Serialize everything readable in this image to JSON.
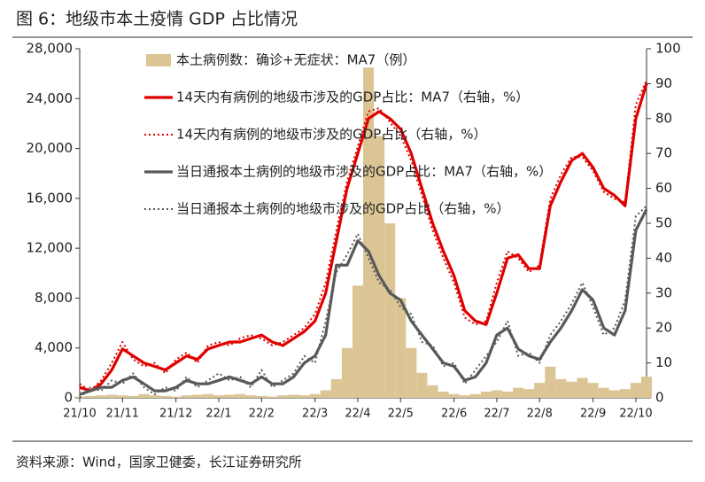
{
  "chart_data": {
    "type": "combo",
    "title": "图 6：地级市本土疫情 GDP 占比情况",
    "source": "资料来源：Wind，国家卫健委，长江证券研究所",
    "categories": [
      "21/10",
      null,
      null,
      null,
      "21/11",
      null,
      null,
      null,
      null,
      "21/12",
      null,
      null,
      null,
      "22/1",
      null,
      null,
      null,
      "22/2",
      null,
      null,
      null,
      null,
      "22/3",
      null,
      null,
      null,
      "22/4",
      null,
      null,
      null,
      "22/5",
      null,
      null,
      null,
      null,
      "22/6",
      null,
      null,
      null,
      "22/7",
      null,
      null,
      null,
      "22/8",
      null,
      null,
      null,
      null,
      "22/9",
      null,
      null,
      null,
      "22/10",
      null
    ],
    "ylim": [
      0,
      28000
    ],
    "yticks": [
      {
        "value": 0,
        "label": "0"
      },
      {
        "value": 4000,
        "label": "4,000"
      },
      {
        "value": 8000,
        "label": "8,000"
      },
      {
        "value": 12000,
        "label": "12,000"
      },
      {
        "value": 16000,
        "label": "16,000"
      },
      {
        "value": 20000,
        "label": "20,000"
      },
      {
        "value": 24000,
        "label": "24,000"
      },
      {
        "value": 28000,
        "label": "28,000"
      }
    ],
    "y2lim": [
      0,
      100
    ],
    "y2ticks": [
      0,
      10,
      20,
      30,
      40,
      50,
      60,
      70,
      80,
      90,
      100
    ],
    "legend": "top",
    "series": [
      {
        "name": "本土病例数：确诊+无症状：MA7（例）",
        "type": "bar",
        "color": "#dcc595",
        "values": [
          100,
          150,
          200,
          250,
          200,
          150,
          300,
          200,
          150,
          100,
          200,
          250,
          300,
          200,
          250,
          300,
          200,
          150,
          100,
          200,
          250,
          200,
          300,
          600,
          1500,
          4000,
          9000,
          26500,
          21000,
          14000,
          8000,
          4000,
          2000,
          1000,
          500,
          300,
          200,
          300,
          500,
          600,
          500,
          800,
          700,
          1200,
          2500,
          1500,
          1300,
          1600,
          1200,
          800,
          600,
          700,
          1200,
          1700
        ]
      },
      {
        "name": "14天内有病例的地级市涉及的GDP占比：MA7（右轴，%）",
        "type": "line",
        "style": "solid",
        "axis": "y2",
        "color": "#e00000",
        "values": [
          3,
          2,
          4,
          8,
          14,
          12,
          10,
          9,
          8,
          10,
          12,
          11,
          14,
          15,
          16,
          16,
          17,
          18,
          16,
          15,
          17,
          19,
          22,
          30,
          45,
          60,
          70,
          80,
          82,
          80,
          77,
          70,
          60,
          50,
          42,
          35,
          25,
          22,
          21,
          30,
          40,
          41,
          37,
          37,
          55,
          62,
          68,
          70,
          66,
          60,
          58,
          55,
          80,
          90
        ]
      },
      {
        "name": "14天内有病例的地级市涉及的GDP占比（右轴，%）",
        "type": "line",
        "style": "dotted",
        "axis": "y2",
        "color": "#e00000",
        "values": [
          4,
          2,
          5,
          10,
          16,
          11,
          9,
          10,
          7,
          11,
          13,
          10,
          15,
          16,
          15,
          17,
          18,
          17,
          15,
          16,
          18,
          20,
          24,
          33,
          48,
          62,
          72,
          82,
          83,
          79,
          75,
          68,
          58,
          48,
          40,
          33,
          23,
          21,
          22,
          33,
          42,
          40,
          36,
          38,
          57,
          64,
          69,
          69,
          65,
          59,
          57,
          56,
          84,
          91
        ]
      },
      {
        "name": "当日通报本土病例的地级市涉及的GDP占比：MA7（右轴，%）",
        "type": "line",
        "style": "solid",
        "axis": "y2",
        "color": "#595959",
        "values": [
          1,
          2,
          3,
          3,
          5,
          6,
          4,
          2,
          2,
          3,
          5,
          4,
          4,
          5,
          6,
          5,
          4,
          6,
          4,
          4,
          6,
          10,
          12,
          18,
          38,
          38,
          45,
          42,
          35,
          30,
          28,
          22,
          18,
          14,
          10,
          9,
          5,
          6,
          10,
          18,
          20,
          14,
          12,
          11,
          16,
          20,
          25,
          31,
          28,
          20,
          18,
          25,
          48,
          54
        ]
      },
      {
        "name": "当日通报本土病例的地级市涉及的GDP占比（右轴，%）",
        "type": "line",
        "style": "dotted",
        "axis": "y2",
        "color": "#595959",
        "values": [
          0,
          3,
          2,
          5,
          4,
          7,
          3,
          1,
          3,
          2,
          6,
          3,
          5,
          7,
          5,
          6,
          3,
          8,
          3,
          5,
          7,
          12,
          10,
          22,
          36,
          41,
          47,
          40,
          33,
          31,
          26,
          24,
          16,
          15,
          9,
          10,
          4,
          8,
          12,
          16,
          22,
          12,
          13,
          10,
          18,
          22,
          27,
          33,
          26,
          18,
          20,
          28,
          52,
          55
        ]
      }
    ]
  }
}
